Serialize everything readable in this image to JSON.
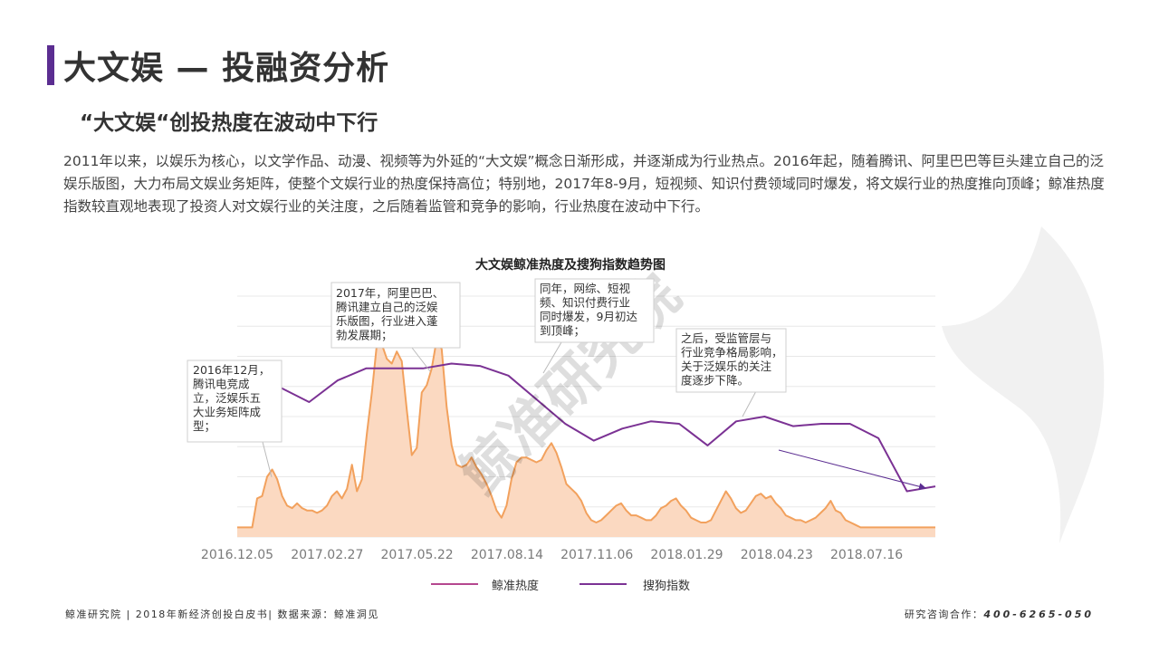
{
  "header": {
    "title": "大文娱 — 投融资分析",
    "subtitle": "“大文娱“创投热度在波动中下行"
  },
  "body": {
    "paragraph": "2011年以来，以娱乐为核心，以文学作品、动漫、视频等为外延的“大文娱”概念日渐形成，并逐渐成为行业热点。2016年起，随着腾讯、阿里巴巴等巨头建立自己的泛娱乐版图，大力布局文娱业务矩阵，使整个文娱行业的热度保持高位；特别地，2017年8-9月，短视频、知识付费领域同时爆发，将文娱行业的热度推向顶峰；鲸准热度指数较直观地表现了投资人对文娱行业的关注度，之后随着监管和竞争的影响，行业热度在波动中下行。"
  },
  "watermark": "鲸准研究院",
  "chart_data": {
    "type": "line",
    "title": "大文娱鲸准热度及搜狗指数趋势图",
    "x_tick_labels": [
      "2016.12.05",
      "2017.02.27",
      "2017.05.22",
      "2017.08.14",
      "2017.11.06",
      "2018.01.29",
      "2018.04.23",
      "2018.07.16"
    ],
    "colors": {
      "heat": "#f2a15d",
      "heat_fill": "#fbd9c1",
      "sogou": "#7b3294",
      "grid": "#e8e8e8"
    },
    "series": [
      {
        "name": "鲸准热度",
        "style": "area",
        "points": [
          [
            0,
            4
          ],
          [
            1,
            4
          ],
          [
            2,
            4
          ],
          [
            3,
            4
          ],
          [
            4,
            16
          ],
          [
            5,
            17
          ],
          [
            6,
            25
          ],
          [
            7,
            28
          ],
          [
            8,
            24
          ],
          [
            9,
            17
          ],
          [
            10,
            13
          ],
          [
            11,
            12
          ],
          [
            12,
            14
          ],
          [
            13,
            12
          ],
          [
            14,
            11
          ],
          [
            15,
            11
          ],
          [
            16,
            10
          ],
          [
            17,
            11
          ],
          [
            18,
            13
          ],
          [
            19,
            17
          ],
          [
            20,
            19
          ],
          [
            21,
            16
          ],
          [
            22,
            20
          ],
          [
            23,
            30
          ],
          [
            24,
            19
          ],
          [
            25,
            24
          ],
          [
            26,
            43
          ],
          [
            27,
            60
          ],
          [
            28,
            80
          ],
          [
            29,
            80
          ],
          [
            30,
            74
          ],
          [
            31,
            72
          ],
          [
            32,
            77
          ],
          [
            33,
            73
          ],
          [
            34,
            53
          ],
          [
            35,
            34
          ],
          [
            36,
            37
          ],
          [
            37,
            60
          ],
          [
            38,
            63
          ],
          [
            39,
            70
          ],
          [
            40,
            82
          ],
          [
            41,
            78
          ],
          [
            42,
            54
          ],
          [
            43,
            38
          ],
          [
            44,
            30
          ],
          [
            45,
            29
          ],
          [
            46,
            30
          ],
          [
            47,
            33
          ],
          [
            48,
            29
          ],
          [
            49,
            26
          ],
          [
            50,
            22
          ],
          [
            51,
            17
          ],
          [
            52,
            11
          ],
          [
            53,
            8
          ],
          [
            54,
            13
          ],
          [
            55,
            24
          ],
          [
            56,
            31
          ],
          [
            57,
            33
          ],
          [
            58,
            33
          ],
          [
            59,
            32
          ],
          [
            60,
            31
          ],
          [
            61,
            32
          ],
          [
            62,
            36
          ],
          [
            63,
            39
          ],
          [
            64,
            35
          ],
          [
            65,
            29
          ],
          [
            66,
            22
          ],
          [
            67,
            20
          ],
          [
            68,
            18
          ],
          [
            69,
            15
          ],
          [
            70,
            10
          ],
          [
            71,
            7
          ],
          [
            72,
            6
          ],
          [
            73,
            7
          ],
          [
            74,
            9
          ],
          [
            75,
            11
          ],
          [
            76,
            13
          ],
          [
            77,
            14
          ],
          [
            78,
            11
          ],
          [
            79,
            9
          ],
          [
            80,
            9
          ],
          [
            81,
            8
          ],
          [
            82,
            7
          ],
          [
            83,
            7
          ],
          [
            84,
            9
          ],
          [
            85,
            12
          ],
          [
            86,
            13
          ],
          [
            87,
            15
          ],
          [
            88,
            16
          ],
          [
            89,
            13
          ],
          [
            90,
            11
          ],
          [
            91,
            8
          ],
          [
            92,
            7
          ],
          [
            93,
            6
          ],
          [
            94,
            6
          ],
          [
            95,
            7
          ],
          [
            96,
            11
          ],
          [
            97,
            15
          ],
          [
            98,
            19
          ],
          [
            99,
            16
          ],
          [
            100,
            12
          ],
          [
            101,
            10
          ],
          [
            102,
            11
          ],
          [
            103,
            14
          ],
          [
            104,
            17
          ],
          [
            105,
            18
          ],
          [
            106,
            16
          ],
          [
            107,
            17
          ],
          [
            108,
            14
          ],
          [
            109,
            12
          ],
          [
            110,
            9
          ],
          [
            111,
            8
          ],
          [
            112,
            7
          ],
          [
            113,
            7
          ],
          [
            114,
            6
          ],
          [
            115,
            7
          ],
          [
            116,
            8
          ],
          [
            117,
            10
          ],
          [
            118,
            12
          ],
          [
            119,
            15
          ],
          [
            120,
            11
          ],
          [
            121,
            10
          ],
          [
            122,
            7
          ],
          [
            123,
            6
          ],
          [
            124,
            5
          ],
          [
            125,
            4
          ],
          [
            126,
            4
          ],
          [
            127,
            4
          ],
          [
            128,
            4
          ],
          [
            129,
            4
          ],
          [
            130,
            4
          ],
          [
            131,
            4
          ],
          [
            132,
            4
          ],
          [
            133,
            4
          ],
          [
            134,
            4
          ],
          [
            135,
            4
          ],
          [
            136,
            4
          ],
          [
            137,
            4
          ],
          [
            138,
            4
          ],
          [
            139,
            4
          ],
          [
            140,
            4
          ]
        ]
      },
      {
        "name": "搜狗指数",
        "style": "line",
        "points": [
          [
            0,
            62
          ],
          [
            1,
            56
          ],
          [
            2,
            65
          ],
          [
            3,
            70
          ],
          [
            4,
            70
          ],
          [
            5,
            70
          ],
          [
            6,
            72
          ],
          [
            7,
            71
          ],
          [
            8,
            67
          ],
          [
            9,
            57
          ],
          [
            10,
            47
          ],
          [
            11,
            40
          ],
          [
            12,
            45
          ],
          [
            13,
            48
          ],
          [
            14,
            47
          ],
          [
            15,
            38
          ],
          [
            16,
            48
          ],
          [
            17,
            50
          ],
          [
            18,
            46
          ],
          [
            19,
            47
          ],
          [
            20,
            47
          ],
          [
            21,
            41
          ],
          [
            22,
            19
          ],
          [
            23,
            21
          ]
        ]
      }
    ],
    "annotations": [
      "2016年12月，\n腾讯电竞成\n立，泛娱乐五\n大业务矩阵成\n型；",
      "2017年，阿里巴巴、\n腾讯建立自己的泛娱\n乐版图，行业进入蓬\n勃发展期；",
      "同年，网综、短视\n频、知识付费行业\n同时爆发，9月初达\n到顶峰；",
      "之后，受监管层与\n行业竞争格局影响，\n关于泛娱乐的关注\n度逐步下降。"
    ]
  },
  "footer": {
    "left": "鲸准研究院 | 2018年新经济创投白皮书| 数据来源：鲸准洞见",
    "right_label": "研究咨询合作：",
    "right_phone": "400-6265-050"
  }
}
